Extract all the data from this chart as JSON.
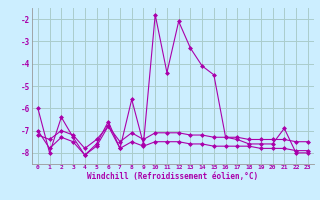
{
  "xlabel": "Windchill (Refroidissement éolien,°C)",
  "ylabel": "",
  "background_color": "#cceeff",
  "grid_color": "#aacccc",
  "line_color": "#aa00aa",
  "x": [
    0,
    1,
    2,
    3,
    4,
    5,
    6,
    7,
    8,
    9,
    10,
    11,
    12,
    13,
    14,
    15,
    16,
    17,
    18,
    19,
    20,
    21,
    22,
    23
  ],
  "line1": [
    -6.0,
    -8.0,
    -6.4,
    -7.3,
    -8.1,
    -7.6,
    -6.6,
    -7.8,
    -5.6,
    -7.6,
    -1.8,
    -4.4,
    -2.1,
    -3.3,
    -4.1,
    -4.5,
    -7.3,
    -7.4,
    -7.6,
    -7.6,
    -7.6,
    -6.9,
    -8.0,
    -8.0
  ],
  "line2": [
    -7.0,
    -7.8,
    -7.3,
    -7.5,
    -8.1,
    -7.7,
    -6.8,
    -7.8,
    -7.5,
    -7.7,
    -7.5,
    -7.5,
    -7.5,
    -7.6,
    -7.6,
    -7.7,
    -7.7,
    -7.7,
    -7.7,
    -7.8,
    -7.8,
    -7.8,
    -7.9,
    -7.9
  ],
  "line3": [
    -7.2,
    -7.4,
    -7.0,
    -7.2,
    -7.8,
    -7.4,
    -6.8,
    -7.5,
    -7.1,
    -7.4,
    -7.1,
    -7.1,
    -7.1,
    -7.2,
    -7.2,
    -7.3,
    -7.3,
    -7.3,
    -7.4,
    -7.4,
    -7.4,
    -7.4,
    -7.5,
    -7.5
  ],
  "ylim": [
    -8.5,
    -1.5
  ],
  "yticks": [
    -8,
    -7,
    -6,
    -5,
    -4,
    -3,
    -2
  ],
  "xlim": [
    -0.5,
    23.5
  ],
  "xticks": [
    0,
    1,
    2,
    3,
    4,
    5,
    6,
    7,
    8,
    9,
    10,
    11,
    12,
    13,
    14,
    15,
    16,
    17,
    18,
    19,
    20,
    21,
    22,
    23
  ],
  "marker": "D",
  "markersize": 2,
  "linewidth": 0.8
}
